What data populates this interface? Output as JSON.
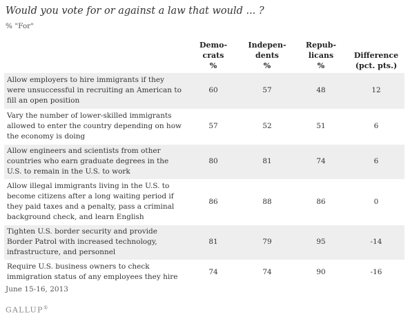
{
  "title": "Would you vote for or against a law that would ... ?",
  "subtitle": "% \"For\"",
  "headers": {
    "democrats": [
      "Demo-",
      "crats",
      "%"
    ],
    "independents": [
      "Indepen-",
      "dents",
      "%"
    ],
    "republicans": [
      "Repub-",
      "licans",
      "%"
    ],
    "difference": [
      "Difference",
      "(pct. pts.)"
    ]
  },
  "chart_data": {
    "type": "table",
    "columns": [
      "Democrats %",
      "Independents %",
      "Republicans %",
      "Difference (pct. pts.)"
    ],
    "rows": [
      {
        "question": "Allow employers to hire immigrants if they were unsuccessful in recruiting an American to fill an open position",
        "democrats": "60",
        "independents": "57",
        "republicans": "48",
        "difference": "12"
      },
      {
        "question": "Vary the number of lower-skilled immigrants allowed to enter the country depending on how the economy is doing",
        "democrats": "57",
        "independents": "52",
        "republicans": "51",
        "difference": "6"
      },
      {
        "question": "Allow engineers and scientists from other countries who earn graduate degrees in the U.S. to remain in the U.S. to work",
        "democrats": "80",
        "independents": "81",
        "republicans": "74",
        "difference": "6"
      },
      {
        "question": "Allow illegal immigrants living in the U.S. to become citizens after a long waiting period if they paid taxes and a penalty, pass a criminal background check, and learn English",
        "democrats": "86",
        "independents": "88",
        "republicans": "86",
        "difference": "0"
      },
      {
        "question": "Tighten U.S. border security and provide Border Patrol with increased technology, infrastructure, and personnel",
        "democrats": "81",
        "independents": "79",
        "republicans": "95",
        "difference": "-14"
      },
      {
        "question": "Require U.S. business owners to check immigration status of any employees they hire",
        "democrats": "74",
        "independents": "74",
        "republicans": "90",
        "difference": "-16"
      }
    ]
  },
  "date": "June 15-16, 2013",
  "logo": "GALLUP",
  "colors": {
    "shaded_row": "#eeeeee",
    "text": "#333333"
  }
}
